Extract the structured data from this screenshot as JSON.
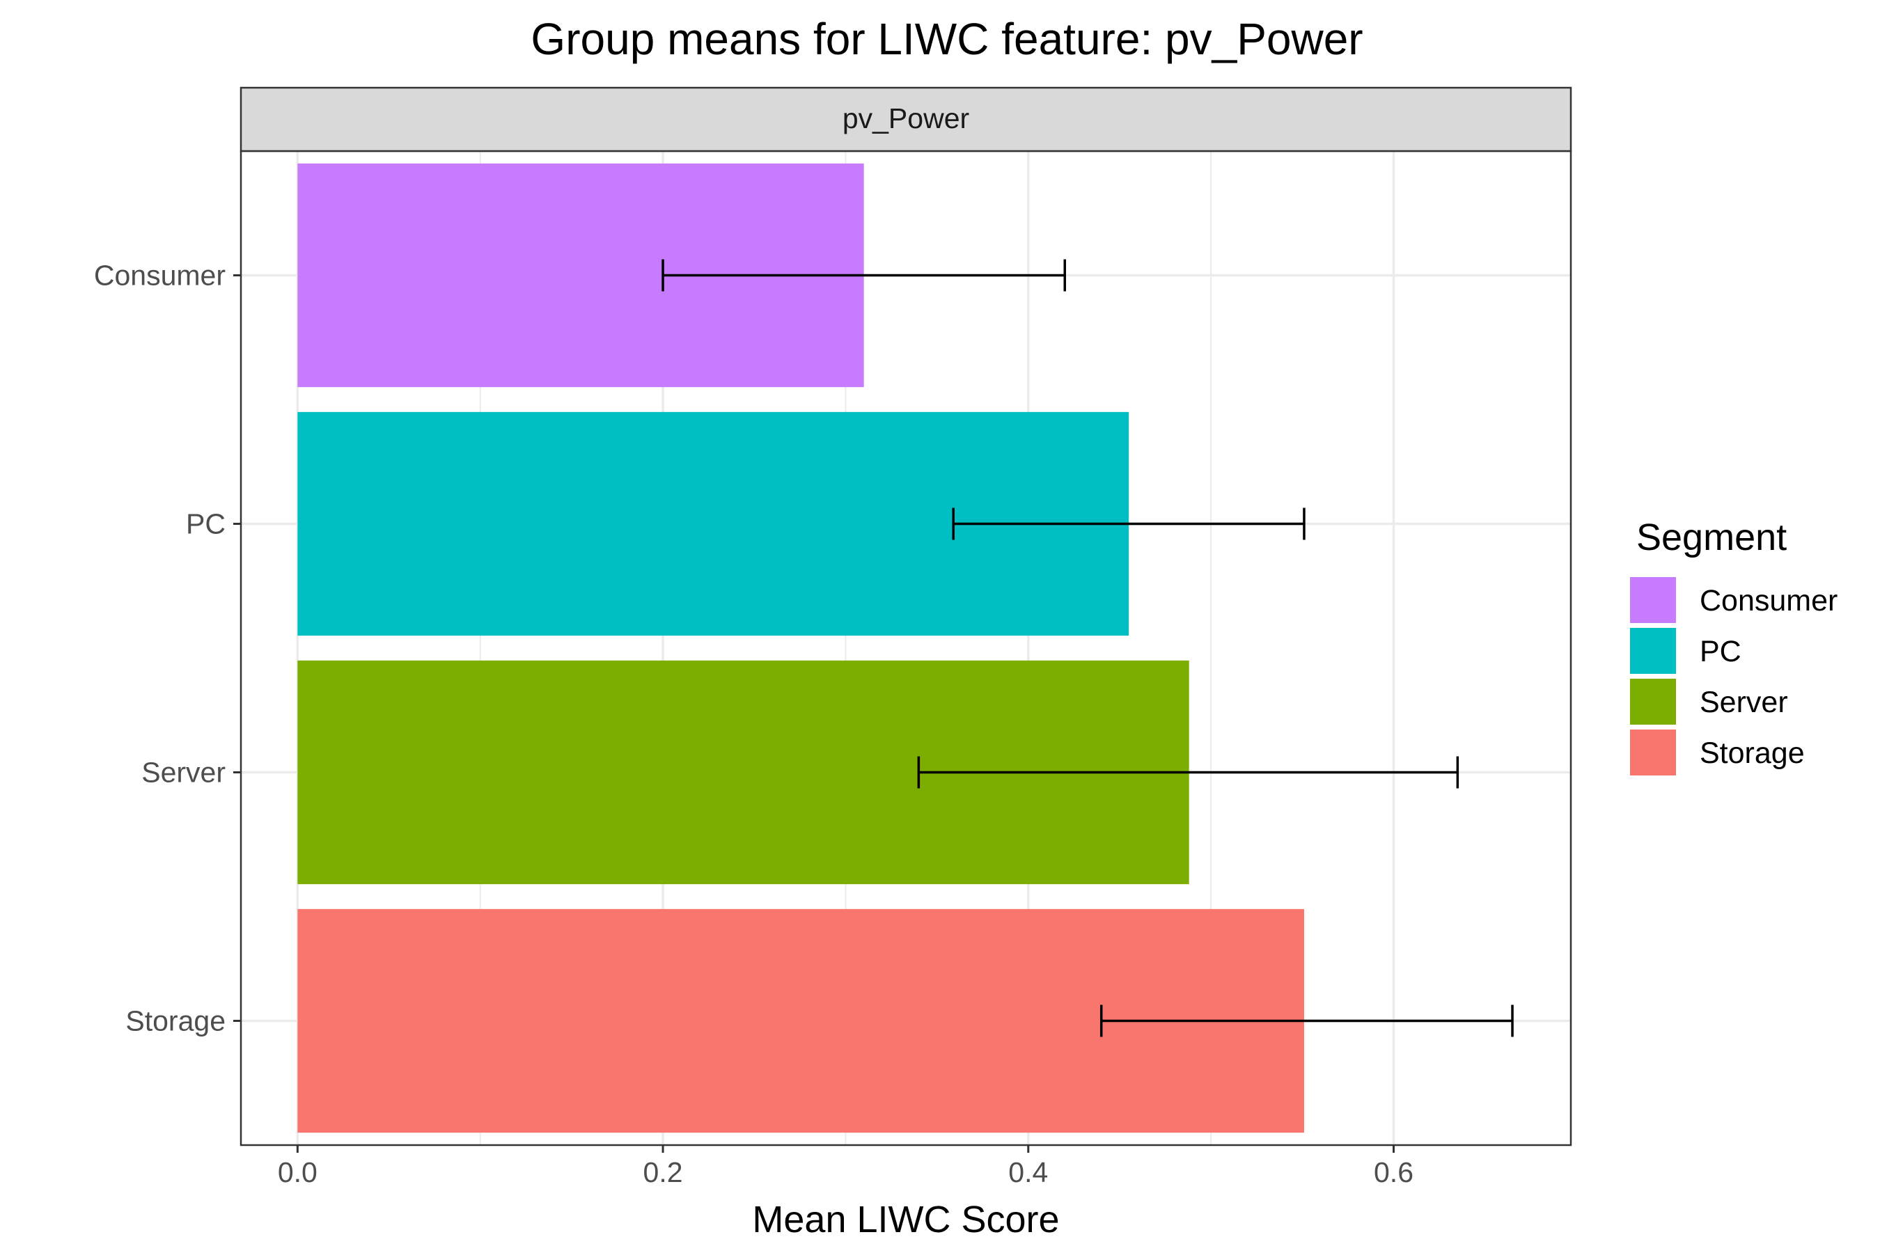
{
  "chart_data": {
    "type": "bar",
    "orientation": "horizontal",
    "title": "Group means for LIWC feature: pv_Power",
    "facet_label": "pv_Power",
    "xlabel": "Mean LIWC Score",
    "ylabel": "",
    "xlim": [
      -0.031,
      0.697
    ],
    "x_ticks": [
      "0.0",
      "0.2",
      "0.4",
      "0.6"
    ],
    "x_tick_values": [
      0,
      0.2,
      0.4,
      0.6
    ],
    "categories": [
      "Consumer",
      "PC",
      "Server",
      "Storage"
    ],
    "values": [
      0.31,
      0.455,
      0.488,
      0.551
    ],
    "error_low": [
      0.2,
      0.359,
      0.34,
      0.44
    ],
    "error_high": [
      0.42,
      0.551,
      0.635,
      0.665
    ],
    "colors": [
      "#C77CFF",
      "#00BFC4",
      "#7CAE00",
      "#F8766D"
    ],
    "grid": true,
    "legend": {
      "title": "Segment",
      "position": "right",
      "items": [
        "Consumer",
        "PC",
        "Server",
        "Storage"
      ]
    }
  }
}
